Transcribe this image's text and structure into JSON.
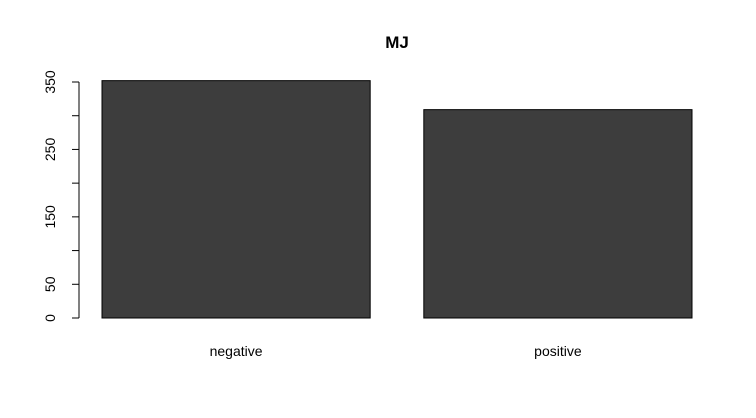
{
  "chart_data": {
    "type": "bar",
    "title": "MJ",
    "categories": [
      "negative",
      "positive"
    ],
    "values": [
      352,
      309
    ],
    "xlabel": "",
    "ylabel": "",
    "ylim": [
      0,
      350
    ],
    "y_ticks": [
      0,
      50,
      100,
      150,
      200,
      250,
      300,
      350
    ],
    "y_tick_labels": [
      "0",
      "50",
      "",
      "150",
      "",
      "250",
      "",
      "350"
    ],
    "grid": false,
    "legend": "none",
    "bar_color": "#3d3d3d"
  }
}
